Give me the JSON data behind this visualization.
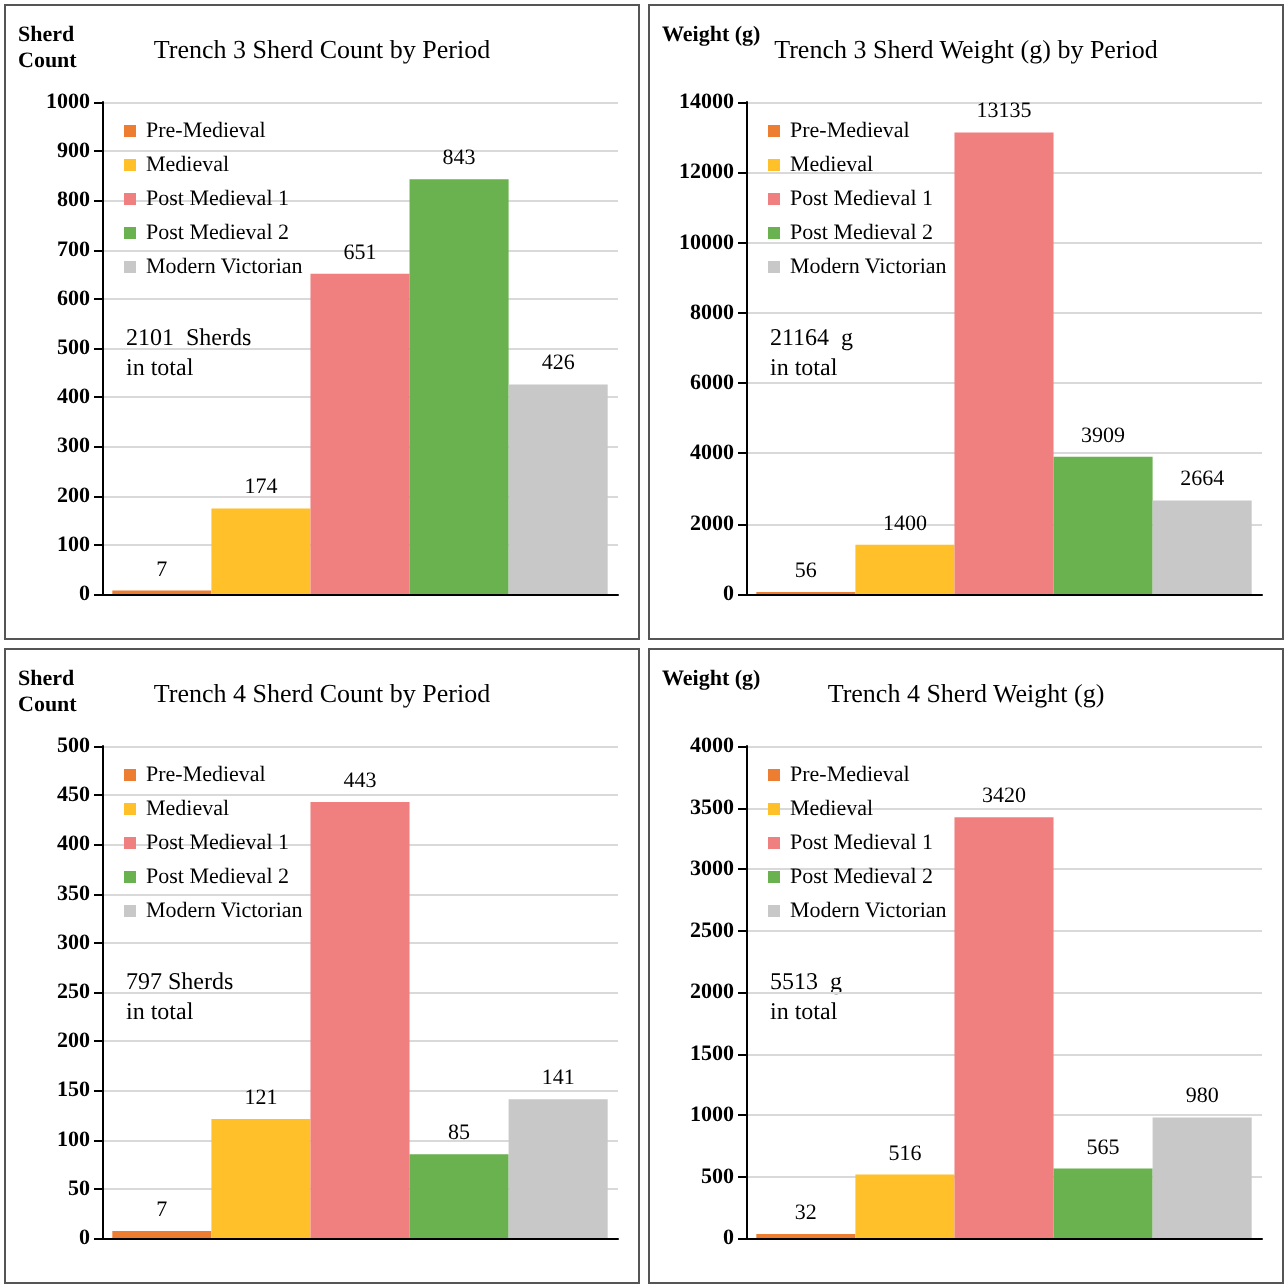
{
  "chart_data": [
    {
      "type": "bar",
      "title": "Trench 3 Sherd Count by Period",
      "ylabel": "Sherd\nCount",
      "categories": [
        null
      ],
      "series": [
        {
          "name": "Pre-Medieval",
          "color": "#ed7d31",
          "values": [
            7
          ]
        },
        {
          "name": "Medieval",
          "color": "#ffc02a",
          "values": [
            174
          ]
        },
        {
          "name": "Post Medieval 1",
          "color": "#f08080",
          "values": [
            651
          ]
        },
        {
          "name": "Post Medieval 2",
          "color": "#6ab150",
          "values": [
            843
          ]
        },
        {
          "name": "Modern Victorian",
          "color": "#c8c8c8",
          "values": [
            426
          ]
        }
      ],
      "ylim": [
        0,
        1000
      ],
      "yticks": [
        0,
        100,
        200,
        300,
        400,
        500,
        600,
        700,
        800,
        900,
        1000
      ],
      "grid": "y",
      "legend": "top left",
      "data_labels": true,
      "annotations": [
        "2101  Sherds\nin total"
      ]
    },
    {
      "type": "bar",
      "title": "Trench 3 Sherd Weight (g) by Period",
      "ylabel": "Weight (g)",
      "categories": [
        null
      ],
      "series": [
        {
          "name": "Pre-Medieval",
          "color": "#ed7d31",
          "values": [
            56
          ]
        },
        {
          "name": "Medieval",
          "color": "#ffc02a",
          "values": [
            1400
          ]
        },
        {
          "name": "Post Medieval 1",
          "color": "#f08080",
          "values": [
            13135
          ]
        },
        {
          "name": "Post Medieval 2",
          "color": "#6ab150",
          "values": [
            3909
          ]
        },
        {
          "name": "Modern Victorian",
          "color": "#c8c8c8",
          "values": [
            2664
          ]
        }
      ],
      "ylim": [
        0,
        14000
      ],
      "yticks": [
        0,
        2000,
        4000,
        6000,
        8000,
        10000,
        12000,
        14000
      ],
      "grid": "y",
      "legend": "top left",
      "data_labels": true,
      "annotations": [
        "21164  g\nin total"
      ]
    },
    {
      "type": "bar",
      "title": "Trench 4 Sherd Count by Period",
      "ylabel": "Sherd\nCount",
      "categories": [
        null
      ],
      "series": [
        {
          "name": "Pre-Medieval",
          "color": "#ed7d31",
          "values": [
            7
          ]
        },
        {
          "name": "Medieval",
          "color": "#ffc02a",
          "values": [
            121
          ]
        },
        {
          "name": "Post Medieval 1",
          "color": "#f08080",
          "values": [
            443
          ]
        },
        {
          "name": "Post Medieval 2",
          "color": "#6ab150",
          "values": [
            85
          ]
        },
        {
          "name": "Modern Victorian",
          "color": "#c8c8c8",
          "values": [
            141
          ]
        }
      ],
      "ylim": [
        0,
        500
      ],
      "yticks": [
        0,
        50,
        100,
        150,
        200,
        250,
        300,
        350,
        400,
        450,
        500
      ],
      "grid": "y",
      "legend": "top left",
      "data_labels": true,
      "annotations": [
        "797 Sherds\nin total"
      ]
    },
    {
      "type": "bar",
      "title": "Trench 4 Sherd Weight (g)",
      "ylabel": "Weight (g)",
      "categories": [
        null
      ],
      "series": [
        {
          "name": "Pre-Medieval",
          "color": "#ed7d31",
          "values": [
            32
          ]
        },
        {
          "name": "Medieval",
          "color": "#ffc02a",
          "values": [
            516
          ]
        },
        {
          "name": "Post Medieval 1",
          "color": "#f08080",
          "values": [
            3420
          ]
        },
        {
          "name": "Post Medieval 2",
          "color": "#6ab150",
          "values": [
            565
          ]
        },
        {
          "name": "Modern Victorian",
          "color": "#c8c8c8",
          "values": [
            980
          ]
        }
      ],
      "ylim": [
        0,
        4000
      ],
      "yticks": [
        0,
        500,
        1000,
        1500,
        2000,
        2500,
        3000,
        3500,
        4000
      ],
      "grid": "y",
      "legend": "top left",
      "data_labels": true,
      "annotations": [
        "5513  g\nin total"
      ]
    }
  ]
}
